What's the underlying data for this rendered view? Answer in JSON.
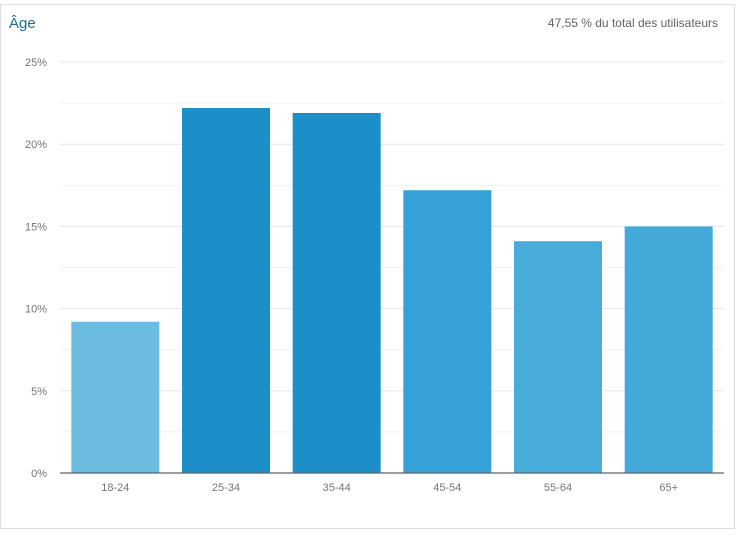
{
  "card": {
    "title": "Âge",
    "subtitle": "47,55 % du total des utilisateurs"
  },
  "chart_data": {
    "type": "bar",
    "title": "Âge",
    "categories": [
      "18-24",
      "25-34",
      "35-44",
      "45-54",
      "55-64",
      "65+"
    ],
    "values": [
      9.2,
      22.2,
      21.9,
      17.2,
      14.1,
      15.0
    ],
    "colors": [
      "#6bbce0",
      "#1c8fc8",
      "#1c8fc8",
      "#35a1d6",
      "#47acda",
      "#43a9d9"
    ],
    "ylim": [
      0,
      25
    ],
    "yticks": [
      "0%",
      "5%",
      "10%",
      "15%",
      "20%",
      "25%"
    ],
    "grid": true,
    "xlabel": "",
    "ylabel": ""
  }
}
